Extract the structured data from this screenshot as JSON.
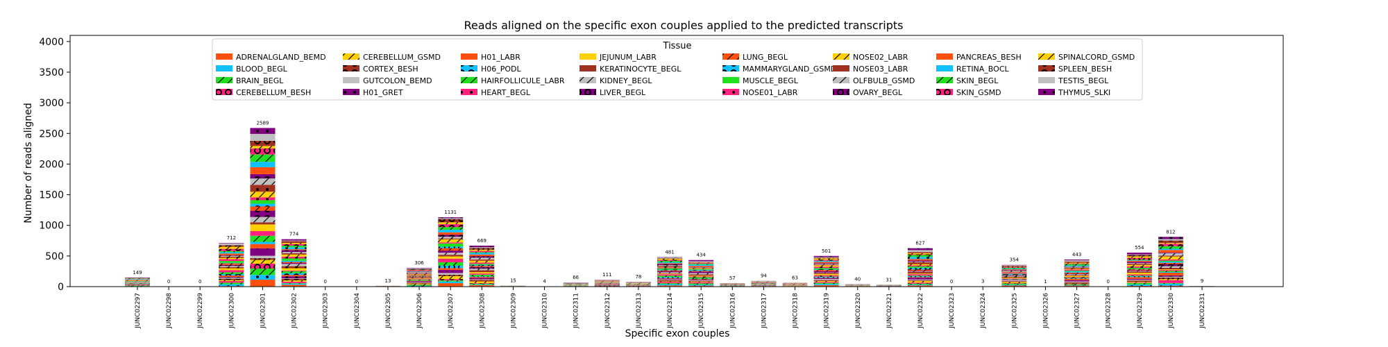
{
  "chart_data": {
    "type": "bar",
    "stacked": true,
    "title": "Reads aligned on the specific exon couples applied to the predicted transcripts",
    "xlabel": "Specific exon couples",
    "ylabel": "Number of reads aligned",
    "ylim": [
      0,
      4100
    ],
    "yticks": [
      0,
      500,
      1000,
      1500,
      2000,
      2500,
      3000,
      3500,
      4000
    ],
    "legend": {
      "title": "Tissue",
      "placement": "top"
    },
    "categories": [
      "JUNC02297",
      "JUNC02298",
      "JUNC02299",
      "JUNC02300",
      "JUNC02301",
      "JUNC02302",
      "JUNC02303",
      "JUNC02304",
      "JUNC02305",
      "JUNC02306",
      "JUNC02307",
      "JUNC02308",
      "JUNC02309",
      "JUNC02310",
      "JUNC02311",
      "JUNC02312",
      "JUNC02313",
      "JUNC02314",
      "JUNC02315",
      "JUNC02316",
      "JUNC02317",
      "JUNC02318",
      "JUNC02319",
      "JUNC02320",
      "JUNC02321",
      "JUNC02322",
      "JUNC02323",
      "JUNC02324",
      "JUNC02325",
      "JUNC02326",
      "JUNC02327",
      "JUNC02328",
      "JUNC02329",
      "JUNC02330",
      "JUNC02331"
    ],
    "totals": [
      149,
      0,
      0,
      712,
      2589,
      774,
      0,
      0,
      13,
      306,
      1131,
      669,
      15,
      4,
      66,
      111,
      78,
      481,
      434,
      57,
      94,
      63,
      501,
      40,
      31,
      627,
      0,
      3,
      354,
      1,
      443,
      0,
      554,
      812,
      9
    ],
    "series": [
      {
        "name": "ADRENALGLAND_BEMD",
        "color": "#ff5010",
        "hatch": "none"
      },
      {
        "name": "BLOOD_BEGL",
        "color": "#10c0ff",
        "hatch": "dot"
      },
      {
        "name": "BRAIN_BEGL",
        "color": "#20e020",
        "hatch": "slash"
      },
      {
        "name": "CEREBELLUM_BESH",
        "color": "#ff2080",
        "hatch": "circle"
      },
      {
        "name": "CEREBELLUM_GSMD",
        "color": "#ffd000",
        "hatch": "slash"
      },
      {
        "name": "CORTEX_BESH",
        "color": "#a03020",
        "hatch": "circle"
      },
      {
        "name": "GUTCOLON_BEMD",
        "color": "#c0c0c0",
        "hatch": "none"
      },
      {
        "name": "H01_GRET",
        "color": "#800080",
        "hatch": "dot"
      },
      {
        "name": "H01_LABR",
        "color": "#ff5010",
        "hatch": "none"
      },
      {
        "name": "H06_PODL",
        "color": "#10c0ff",
        "hatch": "circle"
      },
      {
        "name": "HAIRFOLLICULE_LABR",
        "color": "#20e020",
        "hatch": "slash"
      },
      {
        "name": "HEART_BEGL",
        "color": "#ff2080",
        "hatch": "dot"
      },
      {
        "name": "JEJUNUM_LABR",
        "color": "#ffd000",
        "hatch": "none"
      },
      {
        "name": "KERATINOCYTE_BEGL",
        "color": "#a03020",
        "hatch": "dot"
      },
      {
        "name": "KIDNEY_BEGL",
        "color": "#c0c0c0",
        "hatch": "slash"
      },
      {
        "name": "LIVER_BEGL",
        "color": "#800080",
        "hatch": "circle"
      },
      {
        "name": "LUNG_BEGL",
        "color": "#ff5010",
        "hatch": "slash"
      },
      {
        "name": "MAMMARYGLAND_GSMD",
        "color": "#10c0ff",
        "hatch": "circle"
      },
      {
        "name": "MUSCLE_BEGL",
        "color": "#20e020",
        "hatch": "none"
      },
      {
        "name": "NOSE01_LABR",
        "color": "#ff2080",
        "hatch": "dot"
      },
      {
        "name": "NOSE02_LABR",
        "color": "#ffd000",
        "hatch": "slash"
      },
      {
        "name": "NOSE03_LABR",
        "color": "#a03020",
        "hatch": "dot"
      },
      {
        "name": "OLFBULB_GSMD",
        "color": "#c0c0c0",
        "hatch": "slash"
      },
      {
        "name": "OVARY_BEGL",
        "color": "#800080",
        "hatch": "circle"
      },
      {
        "name": "PANCREAS_BESH",
        "color": "#ff5010",
        "hatch": "none"
      },
      {
        "name": "RETINA_BOCL",
        "color": "#10c0ff",
        "hatch": "dot"
      },
      {
        "name": "SKIN_BEGL",
        "color": "#20e020",
        "hatch": "slash"
      },
      {
        "name": "SKIN_GSMD",
        "color": "#ff2080",
        "hatch": "circle"
      },
      {
        "name": "SPINALCORD_GSMD",
        "color": "#ffd000",
        "hatch": "slash"
      },
      {
        "name": "SPLEEN_BESH",
        "color": "#a03020",
        "hatch": "circle"
      },
      {
        "name": "TESTIS_BEGL",
        "color": "#c0c0c0",
        "hatch": "none"
      },
      {
        "name": "THYMUS_SLKI",
        "color": "#800080",
        "hatch": "dot"
      }
    ]
  }
}
